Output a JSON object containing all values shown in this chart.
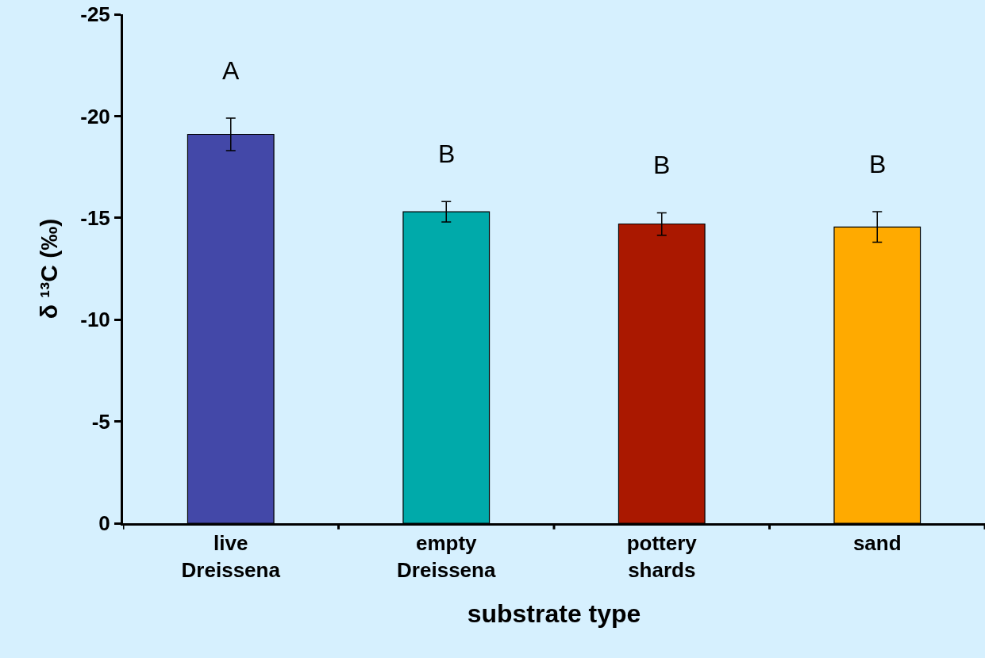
{
  "chart_data": {
    "type": "bar",
    "categories": [
      "live\nDreissena",
      "empty\nDreissena",
      "pottery\nshards",
      "sand"
    ],
    "values": [
      -19.1,
      -15.3,
      -14.7,
      -14.55
    ],
    "errors": [
      0.8,
      0.5,
      0.55,
      0.75
    ],
    "colors": [
      "#4348a8",
      "#00aaaa",
      "#aa1800",
      "#ffaa00"
    ],
    "xlabel": "substrate type",
    "ylabel": "δ ¹³C (‰)",
    "ylim": [
      0,
      -25
    ],
    "yticks": [
      0,
      -5,
      -10,
      -15,
      -20,
      -25
    ],
    "annotations": [
      "A",
      "B",
      "B",
      "B"
    ],
    "grid": false,
    "legend": false
  }
}
